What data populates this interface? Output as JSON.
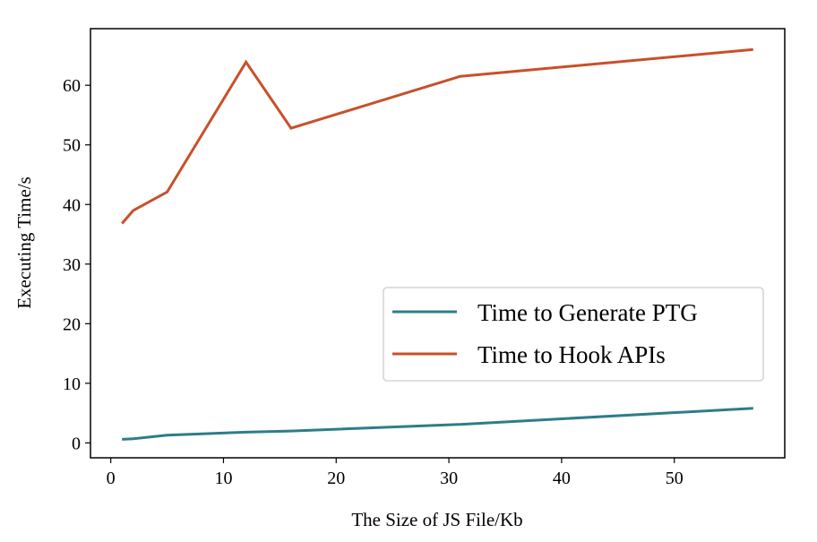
{
  "chart_data": {
    "type": "line",
    "title": "",
    "xlabel": "The Size of JS File/Kb",
    "ylabel": "Executing Time/s",
    "xlim": [
      -1.8,
      59.8
    ],
    "ylim": [
      -2.5,
      69.5
    ],
    "xticks": [
      0,
      10,
      20,
      30,
      40,
      50
    ],
    "yticks": [
      0,
      10,
      20,
      30,
      40,
      50,
      60
    ],
    "grid": false,
    "legend_position": "center-right",
    "x": [
      1,
      2,
      5,
      12,
      16,
      31,
      57
    ],
    "series": [
      {
        "name": "Time to Generate PTG",
        "color": "#2e7d8a",
        "values": [
          0.6,
          0.7,
          1.3,
          1.8,
          2.0,
          3.1,
          5.8
        ]
      },
      {
        "name": "Time to Hook APIs",
        "color": "#c8502b",
        "values": [
          36.8,
          39.0,
          42.1,
          63.9,
          52.8,
          61.5,
          66.0
        ]
      }
    ]
  }
}
